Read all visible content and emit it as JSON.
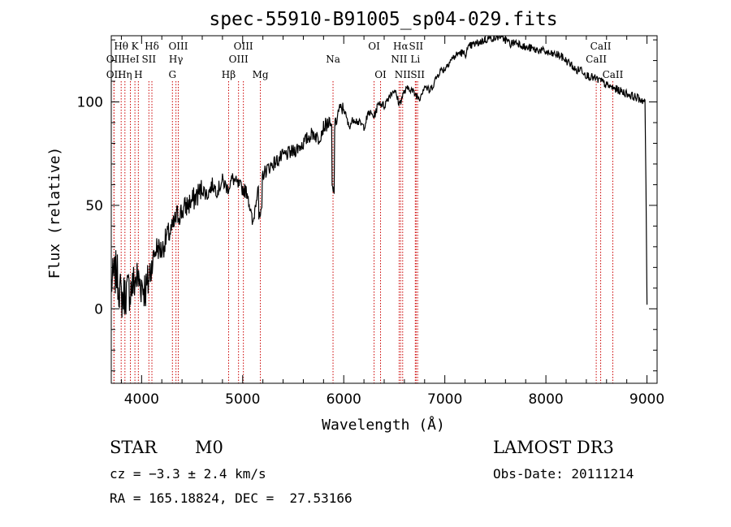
{
  "chart_data": {
    "type": "line",
    "title": "spec-55910-B91005_sp04-029.fits",
    "xlabel": "Wavelength (Å)",
    "ylabel": "Flux (relative)",
    "xlim": [
      3700,
      9100
    ],
    "ylim": [
      -36,
      132
    ],
    "xticks": [
      4000,
      5000,
      6000,
      7000,
      8000,
      9000
    ],
    "yticks": [
      0,
      50,
      100
    ],
    "series": [
      {
        "name": "flux",
        "x": [
          3700,
          3750,
          3800,
          3850,
          3900,
          3950,
          4000,
          4050,
          4100,
          4150,
          4200,
          4250,
          4300,
          4350,
          4400,
          4450,
          4500,
          4550,
          4600,
          4650,
          4700,
          4750,
          4800,
          4850,
          4900,
          4950,
          5000,
          5050,
          5100,
          5150,
          5200,
          5250,
          5300,
          5350,
          5400,
          5450,
          5500,
          5550,
          5600,
          5650,
          5700,
          5750,
          5800,
          5850,
          5900,
          5950,
          6000,
          6050,
          6100,
          6150,
          6200,
          6250,
          6300,
          6350,
          6400,
          6450,
          6500,
          6550,
          6600,
          6650,
          6700,
          6750,
          6800,
          6850,
          6900,
          6950,
          7000,
          7050,
          7100,
          7150,
          7200,
          7250,
          7300,
          7350,
          7400,
          7450,
          7500,
          7550,
          7600,
          7650,
          7700,
          7750,
          7800,
          7850,
          7900,
          7950,
          8000,
          8050,
          8100,
          8150,
          8200,
          8250,
          8300,
          8350,
          8400,
          8450,
          8500,
          8550,
          8600,
          8650,
          8700,
          8750,
          8800,
          8850,
          8900,
          8950,
          8980,
          8990,
          9000
        ],
        "y": [
          12,
          18,
          5,
          8,
          10,
          15,
          12,
          9,
          22,
          30,
          28,
          35,
          38,
          45,
          47,
          50,
          52,
          55,
          58,
          55,
          60,
          57,
          62,
          58,
          63,
          60,
          58,
          56,
          40,
          60,
          65,
          68,
          70,
          72,
          74,
          75,
          76,
          78,
          80,
          83,
          85,
          82,
          88,
          90,
          85,
          96,
          97,
          88,
          92,
          90,
          88,
          95,
          93,
          100,
          98,
          103,
          106,
          99,
          105,
          107,
          104,
          102,
          108,
          105,
          110,
          115,
          116,
          120,
          122,
          124,
          123,
          127,
          128,
          129,
          130,
          131,
          131,
          132,
          130,
          128,
          129,
          128,
          126,
          126,
          125,
          125,
          124,
          123,
          123,
          122,
          120,
          118,
          115,
          116,
          113,
          112,
          111,
          110,
          108,
          107,
          106,
          105,
          104,
          103,
          102,
          101,
          100,
          60,
          2
        ]
      }
    ],
    "spectral_lines": [
      {
        "label": "Hθ",
        "x": 3798,
        "row": 1
      },
      {
        "label": "OII",
        "x": 3727,
        "row": 2
      },
      {
        "label": "OII",
        "x": 3727,
        "row": 3
      },
      {
        "label": "K",
        "x": 3934,
        "row": 1
      },
      {
        "label": "HeI",
        "x": 3889,
        "row": 2
      },
      {
        "label": "Hη",
        "x": 3835,
        "row": 3
      },
      {
        "label": "H",
        "x": 3968,
        "row": 3
      },
      {
        "label": "Hδ",
        "x": 4102,
        "row": 1
      },
      {
        "label": "SII",
        "x": 4072,
        "row": 2
      },
      {
        "label": "OIII",
        "x": 4363,
        "row": 1
      },
      {
        "label": "Hγ",
        "x": 4340,
        "row": 2
      },
      {
        "label": "G",
        "x": 4305,
        "row": 3
      },
      {
        "label": "Hβ",
        "x": 4861,
        "row": 3
      },
      {
        "label": "OIII",
        "x": 5007,
        "row": 1
      },
      {
        "label": "OIII",
        "x": 4959,
        "row": 2
      },
      {
        "label": "Mg",
        "x": 5175,
        "row": 3
      },
      {
        "label": "Na",
        "x": 5894,
        "row": 2
      },
      {
        "label": "OI",
        "x": 6300,
        "row": 1
      },
      {
        "label": "OI",
        "x": 6364,
        "row": 3
      },
      {
        "label": "Hα",
        "x": 6563,
        "row": 1
      },
      {
        "label": "NII",
        "x": 6548,
        "row": 2
      },
      {
        "label": "NII",
        "x": 6583,
        "row": 3
      },
      {
        "label": "SII",
        "x": 6716,
        "row": 1
      },
      {
        "label": "Li",
        "x": 6708,
        "row": 2
      },
      {
        "label": "SII",
        "x": 6731,
        "row": 3
      },
      {
        "label": "CaII",
        "x": 8542,
        "row": 1
      },
      {
        "label": "CaII",
        "x": 8498,
        "row": 2
      },
      {
        "label": "CaII",
        "x": 8662,
        "row": 3
      }
    ]
  },
  "info": {
    "object_class": "STAR",
    "subclass": "M0",
    "survey": "LAMOST DR3",
    "cz": "cz = −3.3 ± 2.4 km/s",
    "obs_date": "Obs-Date: 20111214",
    "coords": "RA = 165.18824, DEC =  27.53166"
  },
  "colors": {
    "axis": "#000000",
    "spectrum": "#000000",
    "line_marker": "#cc0000"
  }
}
